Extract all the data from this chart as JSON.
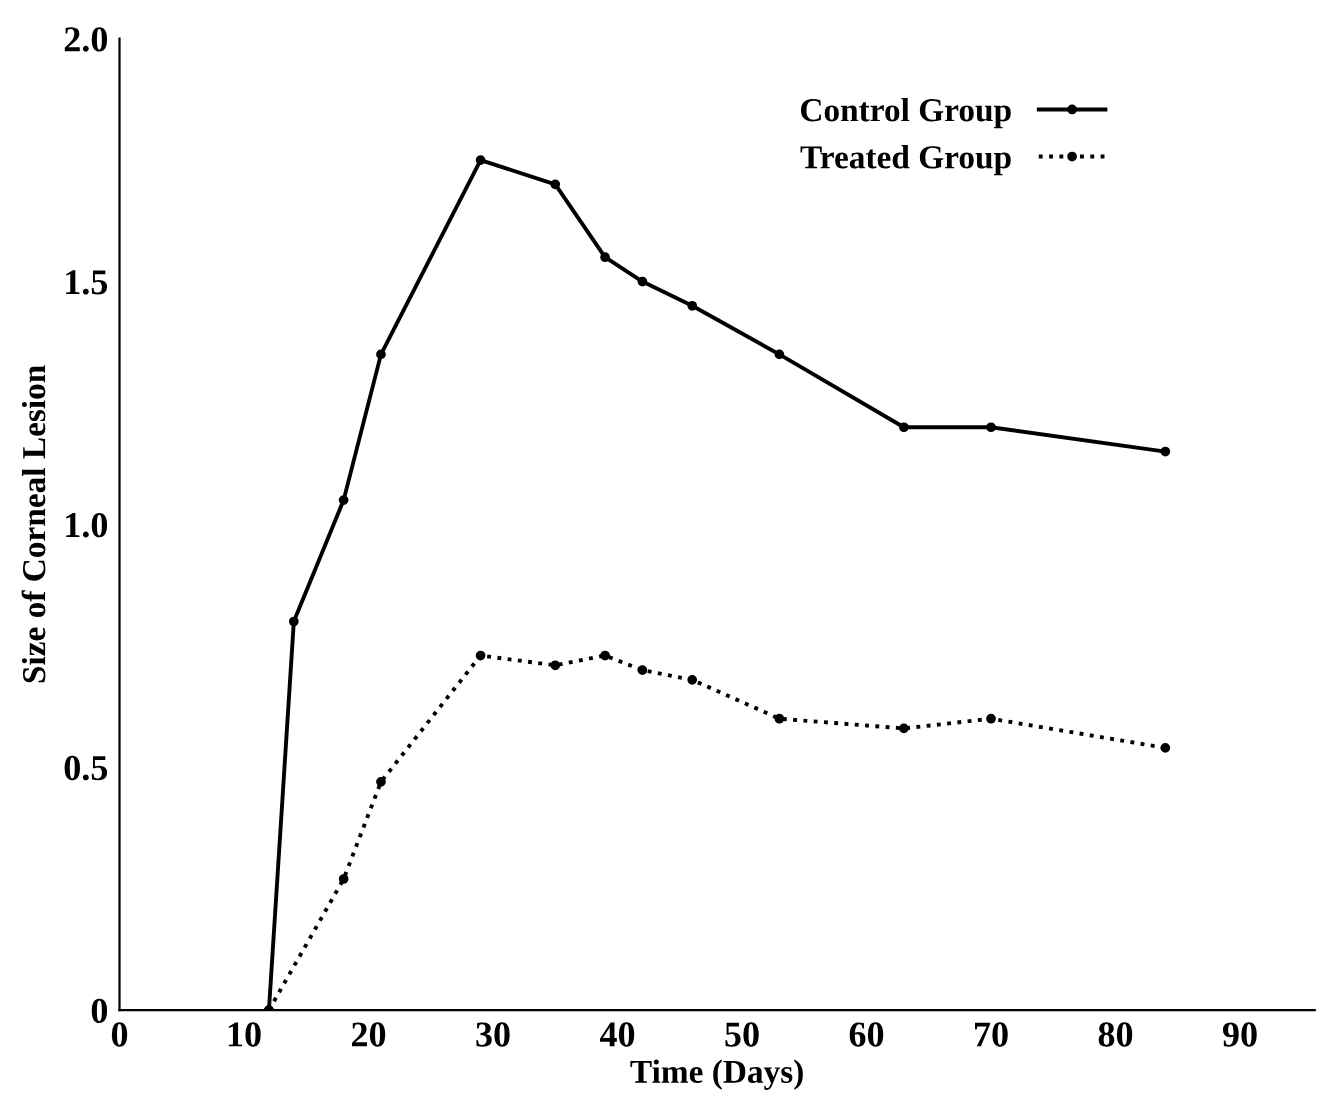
{
  "chart_data": {
    "type": "line",
    "xlabel": "Time (Days)",
    "ylabel": "Size of Corneal Lesion",
    "xlim": [
      0,
      96
    ],
    "ylim": [
      0,
      2.0
    ],
    "xticks": [
      0,
      10,
      20,
      30,
      40,
      50,
      60,
      70,
      80,
      90
    ],
    "yticks": [
      0,
      {
        "value": 0.5,
        "label": "0.5"
      },
      {
        "value": 1.0,
        "label": "1.0"
      },
      {
        "value": 1.5,
        "label": "1.5"
      },
      {
        "value": 2.0,
        "label": "2.0"
      }
    ],
    "grid": false,
    "legend": "top right",
    "marker": "circle",
    "series": [
      {
        "name": "Control Group",
        "color": "#000000",
        "line_style": "solid",
        "x": [
          12,
          14,
          18,
          21,
          29,
          35,
          39,
          42,
          46,
          53,
          63,
          70,
          84
        ],
        "values": [
          0,
          0.8,
          1.05,
          1.35,
          1.75,
          1.7,
          1.55,
          1.5,
          1.45,
          1.35,
          1.2,
          1.2,
          1.15
        ]
      },
      {
        "name": "Treated Group",
        "color": "#000000",
        "line_style": "dotted",
        "x": [
          12,
          18,
          21,
          29,
          35,
          39,
          42,
          46,
          53,
          63,
          70,
          84
        ],
        "values": [
          0,
          0.27,
          0.47,
          0.73,
          0.71,
          0.73,
          0.7,
          0.68,
          0.6,
          0.58,
          0.6,
          0.54
        ]
      }
    ]
  }
}
